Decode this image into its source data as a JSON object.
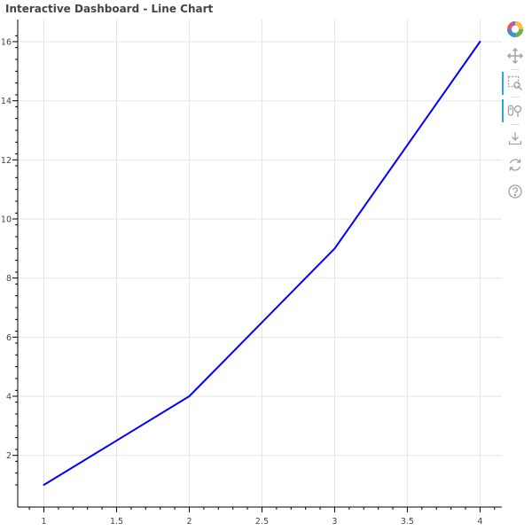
{
  "chart_data": {
    "type": "line",
    "title": "Interactive Dashboard - Line Chart",
    "x": [
      1,
      2,
      3,
      4
    ],
    "series": [
      {
        "values": [
          1,
          4,
          9,
          16
        ],
        "color": "#0000ff"
      }
    ],
    "xlim": [
      0.82,
      4.15
    ],
    "ylim": [
      0.25,
      16.75
    ],
    "x_ticks": [
      1,
      1.5,
      2,
      2.5,
      3,
      3.5,
      4
    ],
    "x_tick_labels": [
      "1",
      "1.5",
      "2",
      "2.5",
      "3",
      "3.5",
      "4"
    ],
    "y_ticks": [
      2,
      4,
      6,
      8,
      10,
      12,
      14,
      16
    ],
    "y_tick_labels": [
      "2",
      "4",
      "6",
      "8",
      "10",
      "12",
      "14",
      "16"
    ],
    "grid": true,
    "xlabel": "",
    "ylabel": ""
  },
  "toolbar": {
    "tools": [
      {
        "name": "bokeh-logo",
        "icon": "bokeh-logo-icon",
        "active": false,
        "interactable": true
      },
      {
        "name": "pan-tool",
        "icon": "pan-icon",
        "active": false,
        "interactable": true
      },
      {
        "name": "box-zoom-tool",
        "icon": "box-zoom-icon",
        "active": true,
        "interactable": true
      },
      {
        "name": "wheel-zoom-tool",
        "icon": "wheel-zoom-icon",
        "active": true,
        "interactable": true
      },
      {
        "name": "save-tool",
        "icon": "save-icon",
        "active": false,
        "interactable": true
      },
      {
        "name": "reset-tool",
        "icon": "reset-icon",
        "active": false,
        "interactable": true
      },
      {
        "name": "help-tool",
        "icon": "help-icon",
        "active": false,
        "interactable": true
      }
    ]
  }
}
